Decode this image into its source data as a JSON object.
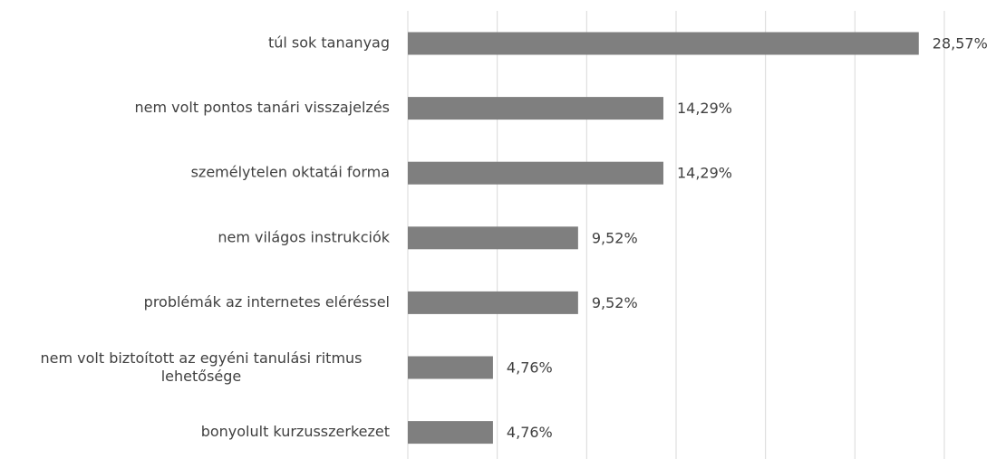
{
  "chart_data": {
    "type": "bar",
    "orientation": "horizontal",
    "categories": [
      "túl sok tananyag",
      "nem volt pontos tanári visszajelzés",
      "személytelen oktatái forma",
      "nem világos instrukciók",
      "problémák az internetes eléréssel",
      "nem volt biztoított az egyéni tanulási ritmus lehetősége",
      "bonyolult kurzusszerkezet"
    ],
    "values": [
      28.57,
      14.29,
      14.29,
      9.52,
      9.52,
      4.76,
      4.76
    ],
    "value_labels": [
      "28,57%",
      "14,29%",
      "14,29%",
      "9,52%",
      "9,52%",
      "4,76%",
      "4,76%"
    ],
    "color": "#7f7f7f",
    "xlim": [
      0,
      30
    ],
    "xticks": [
      0,
      5,
      10,
      15,
      20,
      25,
      30
    ],
    "grid": true
  }
}
